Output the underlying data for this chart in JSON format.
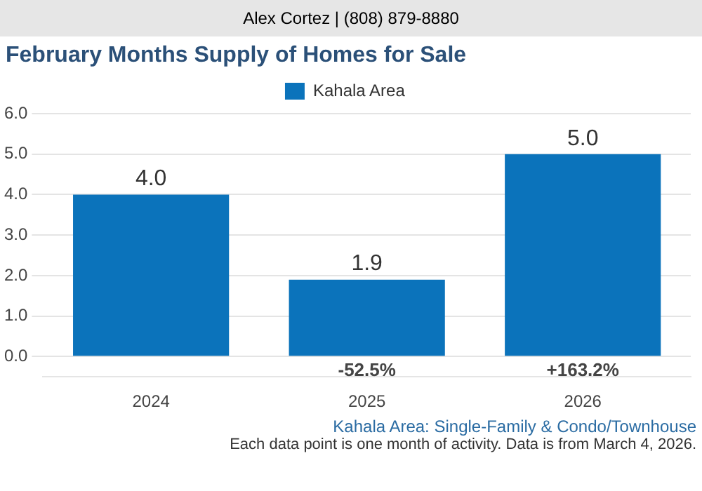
{
  "chart_data": {
    "type": "bar",
    "title": "February Months Supply of Homes for Sale",
    "categories": [
      "2024",
      "2025",
      "2026"
    ],
    "series": [
      {
        "name": "Kahala Area",
        "color": "#0b73bb",
        "values": [
          4.0,
          1.9,
          5.0
        ],
        "value_labels": [
          "4.0",
          "1.9",
          "5.0"
        ]
      }
    ],
    "ylim": [
      -0.5,
      6
    ],
    "yticks": [
      {
        "value": 0,
        "label": "0.0"
      },
      {
        "value": 1,
        "label": "1.0"
      },
      {
        "value": 2,
        "label": "2.0"
      },
      {
        "value": 3,
        "label": "3.0"
      },
      {
        "value": 4,
        "label": "4.0"
      },
      {
        "value": 5,
        "label": "5.0"
      },
      {
        "value": 6,
        "label": "6.0"
      }
    ],
    "grid": "y",
    "legend": "top",
    "annotations": [
      "Alex Cortez | (808) 879-8880",
      "-52.5%",
      "+163.2%",
      "Kahala Area: Single-Family & Condo/Townhouse",
      "Each data point is one month of activity. Data is from March 4, 2026."
    ]
  }
}
